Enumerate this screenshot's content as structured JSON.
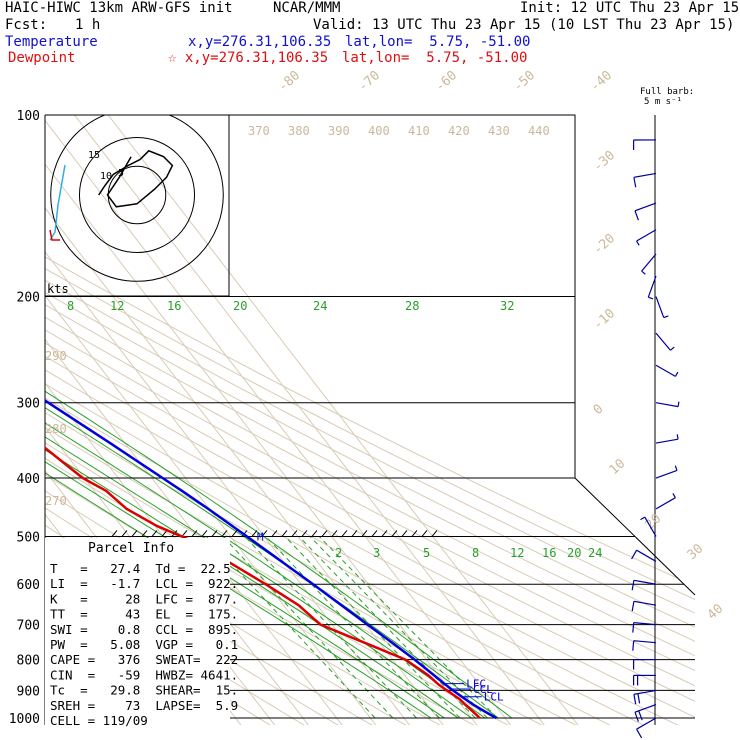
{
  "header": {
    "model": "HAIC-HIWC 13km ARW-GFS init",
    "org": "NCAR/MMM",
    "init": "Init: 12 UTC Thu 23 Apr 15",
    "fcst_label": "Fcst:",
    "fcst_value": "1 h",
    "valid": "Valid: 13 UTC Thu 23 Apr 15 (10 LST Thu 23 Apr 15)",
    "temp_label": "Temperature",
    "temp_xy": "x,y=276.31,106.35",
    "temp_latlon": "lat,lon=  5.75, -51.00",
    "dew_label": "Dewpoint",
    "dew_xy": "☆ x,y=276.31,106.35",
    "dew_latlon": "lat,lon=  5.75, -51.00"
  },
  "barb_legend": {
    "line1": "Full barb:",
    "line2": "5 m s⁻¹"
  },
  "parcel": {
    "title": "Parcel Info",
    "rows": [
      "T   =   27.4  Td =  22.5",
      "LI  =   -1.7  LCL =  922.",
      "K   =     28  LFC =  877.",
      "TT  =     43  EL  =  175.",
      "SWI =    0.8  CCL =  895.",
      "PW  =   5.08  VGP =   0.1",
      "CAPE =   376  SWEAT=  222",
      "CIN  =   -59  HWBZ= 4641.",
      "Tc  =   29.8  SHEAR=  15.",
      "SREH =    73  LAPSE=  5.9",
      "CELL = 119/09"
    ]
  },
  "hodograph": {
    "units": "kts",
    "ring_labels": [
      "5",
      "10",
      "15"
    ]
  },
  "chart_data": {
    "type": "skew-t",
    "pressure_levels": [
      100,
      200,
      300,
      400,
      500,
      600,
      700,
      800,
      900,
      1000
    ],
    "pressure_labels": [
      "100",
      "200",
      "300",
      "400",
      "500",
      "600",
      "700",
      "800",
      "900",
      "1000"
    ],
    "isotherm_labels": [
      "-80",
      "-70",
      "-60",
      "-50",
      "-40",
      "-30",
      "-20",
      "-10",
      "0",
      "10",
      "20",
      "30",
      "40"
    ],
    "theta_e_labels": [
      "370",
      "380",
      "390",
      "400",
      "410",
      "420",
      "430",
      "440"
    ],
    "dry_adiabat_labels": [
      "290",
      "280",
      "270"
    ],
    "mixing_ratio_labels_upper": [
      "8",
      "12",
      "16",
      "20",
      "24",
      "28",
      "32"
    ],
    "mixing_ratio_labels_lower": [
      "2",
      "3",
      "5",
      "8",
      "12",
      "16",
      "20",
      "24"
    ],
    "annotations": [
      {
        "text": "EL",
        "p": 175
      },
      {
        "text": "M",
        "p": 500
      },
      {
        "text": "LFC",
        "p": 877
      },
      {
        "text": "CCL",
        "p": 895
      },
      {
        "text": "LCL",
        "p": 922
      }
    ],
    "temperature": {
      "name": "Temperature",
      "color": "#0000dd",
      "p": [
        1000,
        980,
        950,
        922,
        900,
        880,
        850,
        800,
        750,
        700,
        650,
        600,
        550,
        500,
        450,
        420,
        400,
        350,
        300,
        250,
        200,
        175,
        150,
        130,
        110,
        100
      ],
      "t": [
        27.4,
        25.8,
        23.6,
        22.0,
        20.8,
        19.9,
        18.7,
        16.5,
        13.7,
        10.5,
        7.2,
        3.6,
        -0.6,
        -5.1,
        -10.3,
        -14.0,
        -16.8,
        -24.4,
        -33.5,
        -43.7,
        -56.0,
        -62.5,
        -70.5,
        -77.5,
        -85.5,
        -87.5
      ]
    },
    "dewpoint": {
      "name": "Dewpoint",
      "color": "#dd0000",
      "p": [
        1000,
        980,
        950,
        930,
        900,
        880,
        850,
        800,
        750,
        700,
        650,
        600,
        550,
        520,
        500,
        480,
        450,
        420,
        400,
        350,
        300,
        250,
        200,
        180,
        150,
        120,
        100
      ],
      "t": [
        22.5,
        22.0,
        21.2,
        20.8,
        19.0,
        17.9,
        17.0,
        13.8,
        5.5,
        -3.5,
        -5.5,
        -10.5,
        -16.5,
        -19.5,
        -24.5,
        -29.5,
        -34.5,
        -36.5,
        -40.5,
        -45.5,
        -48.5,
        -65.5,
        -83.5,
        -87.5,
        -89.5,
        -93.0,
        -97.5
      ]
    },
    "wind_barbs": [
      {
        "p": 110,
        "dir": 90,
        "spd_ms": 5
      },
      {
        "p": 125,
        "dir": 80,
        "spd_ms": 5
      },
      {
        "p": 140,
        "dir": 70,
        "spd_ms": 5
      },
      {
        "p": 155,
        "dir": 60,
        "spd_ms": 3
      },
      {
        "p": 170,
        "dir": 40,
        "spd_ms": 3
      },
      {
        "p": 185,
        "dir": 20,
        "spd_ms": 3
      },
      {
        "p": 200,
        "dir": 340,
        "spd_ms": 3
      },
      {
        "p": 230,
        "dir": 320,
        "spd_ms": 3
      },
      {
        "p": 260,
        "dir": 300,
        "spd_ms": 3
      },
      {
        "p": 300,
        "dir": 280,
        "spd_ms": 3
      },
      {
        "p": 350,
        "dir": 260,
        "spd_ms": 3
      },
      {
        "p": 400,
        "dir": 250,
        "spd_ms": 3
      },
      {
        "p": 450,
        "dir": 240,
        "spd_ms": 3
      },
      {
        "p": 500,
        "dir": 150,
        "spd_ms": 3
      },
      {
        "p": 550,
        "dir": 120,
        "spd_ms": 5
      },
      {
        "p": 600,
        "dir": 100,
        "spd_ms": 5
      },
      {
        "p": 650,
        "dir": 100,
        "spd_ms": 5
      },
      {
        "p": 700,
        "dir": 95,
        "spd_ms": 5
      },
      {
        "p": 750,
        "dir": 95,
        "spd_ms": 5
      },
      {
        "p": 800,
        "dir": 90,
        "spd_ms": 5
      },
      {
        "p": 850,
        "dir": 90,
        "spd_ms": 10
      },
      {
        "p": 900,
        "dir": 80,
        "spd_ms": 10
      },
      {
        "p": 950,
        "dir": 70,
        "spd_ms": 10
      },
      {
        "p": 1000,
        "dir": 60,
        "spd_ms": 5
      }
    ],
    "hodograph_u": [
      -2,
      -6,
      -10,
      -7,
      0,
      6,
      10,
      12,
      9,
      4,
      1,
      -3,
      -8,
      -11,
      -13
    ],
    "hodograph_v": [
      -13,
      -6,
      0,
      4,
      3,
      -2,
      -6,
      -10,
      -13,
      -15,
      -12,
      -10,
      -7,
      -3,
      0
    ]
  }
}
